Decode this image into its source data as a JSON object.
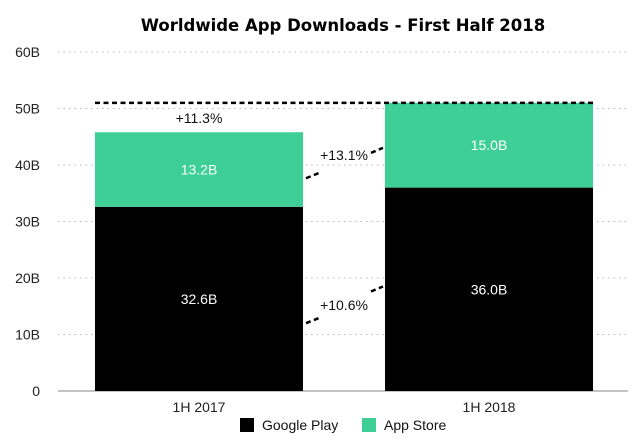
{
  "chart_data": {
    "type": "bar",
    "stacked": true,
    "title": "Worldwide App Downloads - First Half 2018",
    "categories": [
      "1H 2017",
      "1H 2018"
    ],
    "series": [
      {
        "name": "Google Play",
        "color": "#000000",
        "values": [
          32.6,
          36.0
        ],
        "labels": [
          "32.6B",
          "36.0B"
        ]
      },
      {
        "name": "App Store",
        "color": "#3ecf96",
        "values": [
          13.2,
          15.0
        ],
        "labels": [
          "13.2B",
          "15.0B"
        ]
      }
    ],
    "ylim": [
      0,
      60
    ],
    "yticks": [
      0,
      10,
      20,
      30,
      40,
      50,
      60
    ],
    "ytick_labels": [
      "0",
      "10B",
      "20B",
      "30B",
      "40B",
      "50B",
      "60B"
    ],
    "grid": true,
    "legend": "bottom",
    "annotations": {
      "total_growth": "+11.3%",
      "app_store_growth": "+13.1%",
      "google_play_growth": "+10.6%"
    }
  }
}
